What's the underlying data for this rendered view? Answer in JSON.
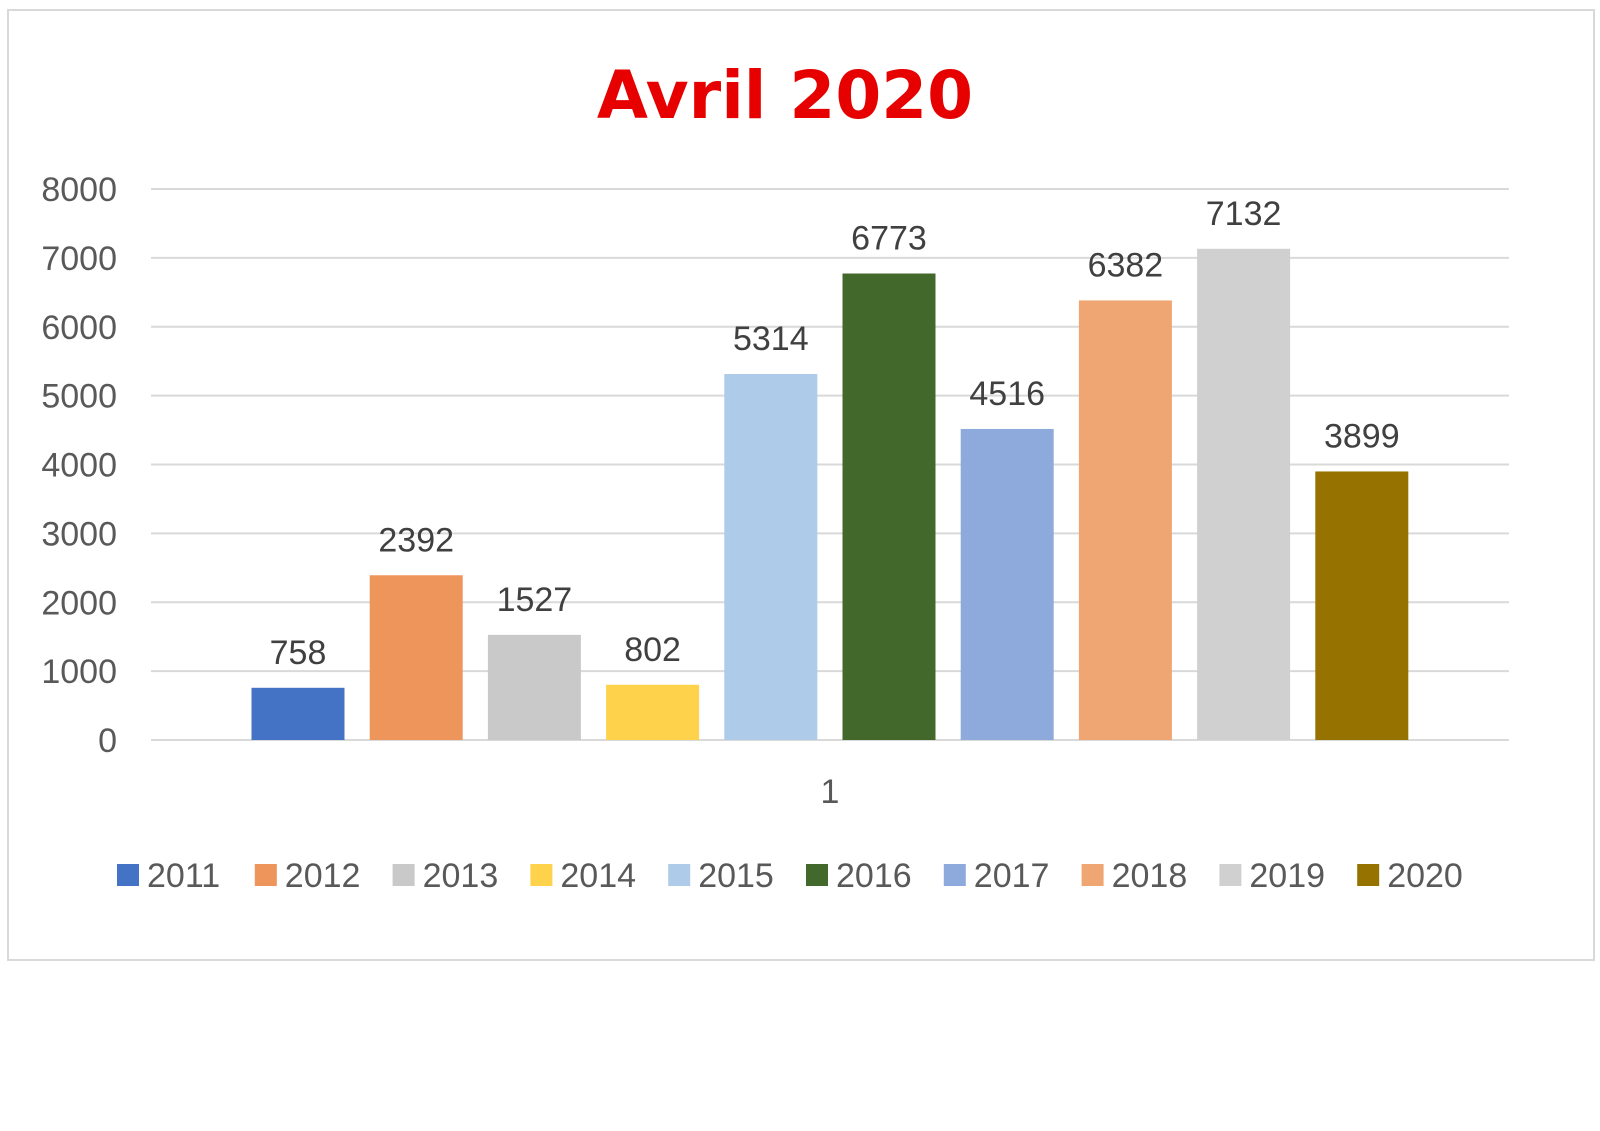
{
  "chart_data": {
    "type": "bar",
    "title": "Avril 2020",
    "categories": [
      "1"
    ],
    "ylim": [
      0,
      8000
    ],
    "yticks": [
      "0",
      "1000",
      "2000",
      "3000",
      "4000",
      "5000",
      "6000",
      "7000",
      "8000"
    ],
    "grid": true,
    "legend_position": "bottom",
    "data_labels": true,
    "series": [
      {
        "name": "2011",
        "values": [
          758
        ],
        "color": "#4472c4"
      },
      {
        "name": "2012",
        "values": [
          2392
        ],
        "color": "#ed955a"
      },
      {
        "name": "2013",
        "values": [
          1527
        ],
        "color": "#c9c9c9"
      },
      {
        "name": "2014",
        "values": [
          802
        ],
        "color": "#ffd24c"
      },
      {
        "name": "2015",
        "values": [
          5314
        ],
        "color": "#aecbea"
      },
      {
        "name": "2016",
        "values": [
          6773
        ],
        "color": "#43682b"
      },
      {
        "name": "2017",
        "values": [
          4516
        ],
        "color": "#8eaadc"
      },
      {
        "name": "2018",
        "values": [
          6382
        ],
        "color": "#f0a672"
      },
      {
        "name": "2019",
        "values": [
          7132
        ],
        "color": "#d0d0d0"
      },
      {
        "name": "2020",
        "values": [
          3899
        ],
        "color": "#967300"
      }
    ]
  }
}
